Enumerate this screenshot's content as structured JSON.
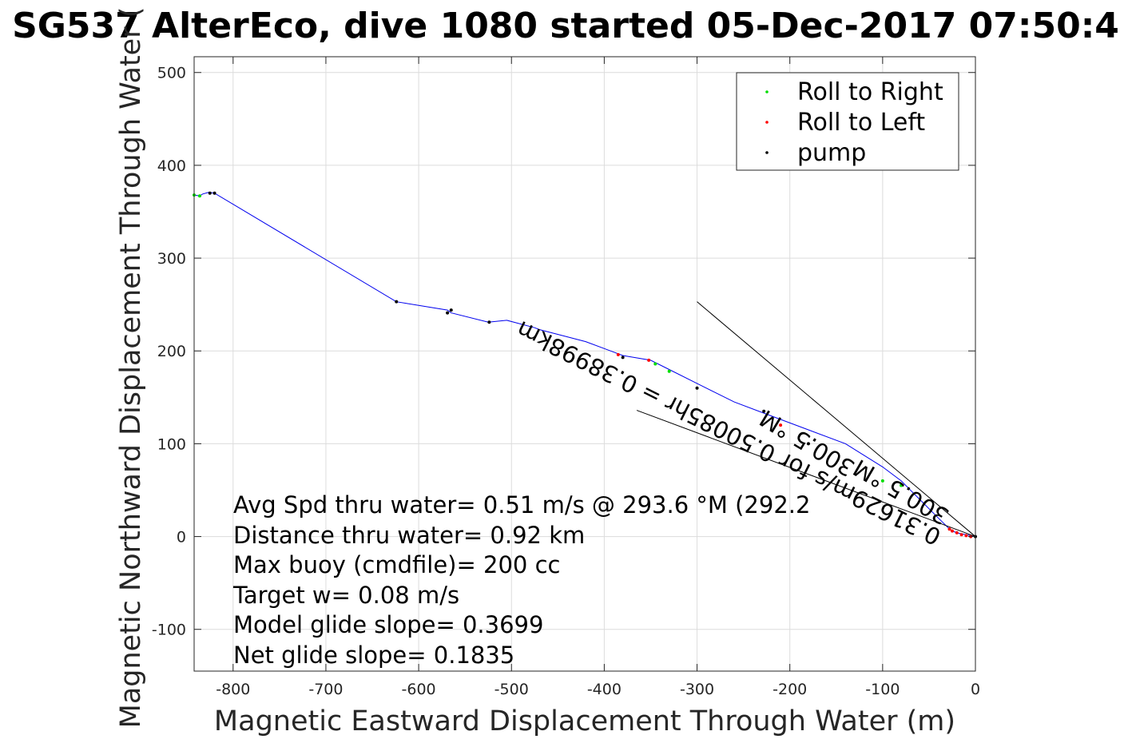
{
  "chart_data": {
    "type": "line",
    "title": "SG537 AlterEco, dive 1080 started 05-Dec-2017 07:50:4",
    "xlabel": "Magnetic Eastward Displacement Through Water (m)",
    "ylabel": "Magnetic Northward Displacement Through Water (",
    "xlim": [
      -842,
      0
    ],
    "ylim": [
      -145,
      517
    ],
    "x_ticks": [
      -800,
      -700,
      -600,
      -500,
      -400,
      -300,
      -200,
      -100,
      0
    ],
    "y_ticks": [
      -100,
      0,
      100,
      200,
      300,
      400,
      500
    ],
    "grid": true,
    "legend_position": "top-right",
    "legend": [
      {
        "label": "Roll to Right",
        "color": "#00dd00"
      },
      {
        "label": "Roll to Left",
        "color": "#ff0000"
      },
      {
        "label": "pump",
        "color": "#000000"
      }
    ],
    "series": [
      {
        "style": "line",
        "color": "#0000ee",
        "x": [
          0,
          -10,
          -20,
          -25,
          -30,
          -40,
          -60,
          -80,
          -100,
          -140,
          -180,
          -220,
          -260,
          -300,
          -330,
          -350,
          -380,
          -420,
          -470,
          -475,
          -505,
          -525,
          -565,
          -569,
          -624,
          -820,
          -826,
          -833,
          -836,
          -842
        ],
        "y": [
          0,
          2,
          4,
          6,
          10,
          20,
          40,
          60,
          75,
          100,
          115,
          130,
          145,
          165,
          180,
          190,
          195,
          210,
          223,
          225,
          233,
          231,
          241,
          244,
          253,
          370,
          371,
          369,
          367,
          368
        ]
      },
      {
        "style": "points",
        "color": "#00dd00",
        "x": [
          -330,
          -345,
          -100,
          -80,
          -836,
          -842
        ],
        "y": [
          178,
          186,
          60,
          55,
          367,
          368
        ]
      },
      {
        "style": "points",
        "color": "#ff0000",
        "x": [
          -5,
          -10,
          -15,
          -20,
          -25,
          -28,
          -385,
          -352,
          -210
        ],
        "y": [
          0,
          1,
          2,
          4,
          6,
          8,
          196,
          190,
          120
        ]
      },
      {
        "style": "points",
        "color": "#000000",
        "x": [
          0,
          -380,
          -524,
          -565,
          -569,
          -624,
          -820,
          -825,
          -180,
          -300,
          -228
        ],
        "y": [
          0,
          193,
          231,
          244,
          241,
          253,
          370,
          370,
          100,
          160,
          135
        ]
      }
    ],
    "annotations": {
      "lines": [
        {
          "x": [
            0,
            -300
          ],
          "y": [
            0,
            253
          ]
        },
        {
          "x": [
            0,
            -365
          ],
          "y": [
            0,
            136
          ]
        }
      ],
      "rotated_texts": [
        "300.5 °M",
        "0.31629m/s for 0.50085hr = 0.38998km",
        "300.5 °M"
      ],
      "stats": [
        "Avg Spd thru water=  0.51 m/s @ 293.6 °M (292.2",
        "Distance thru water=  0.92 km",
        "Max buoy (cmdfile)= 200 cc",
        "Target w= 0.08 m/s",
        "Model glide slope= 0.3699",
        "Net glide slope= 0.1835"
      ]
    }
  }
}
